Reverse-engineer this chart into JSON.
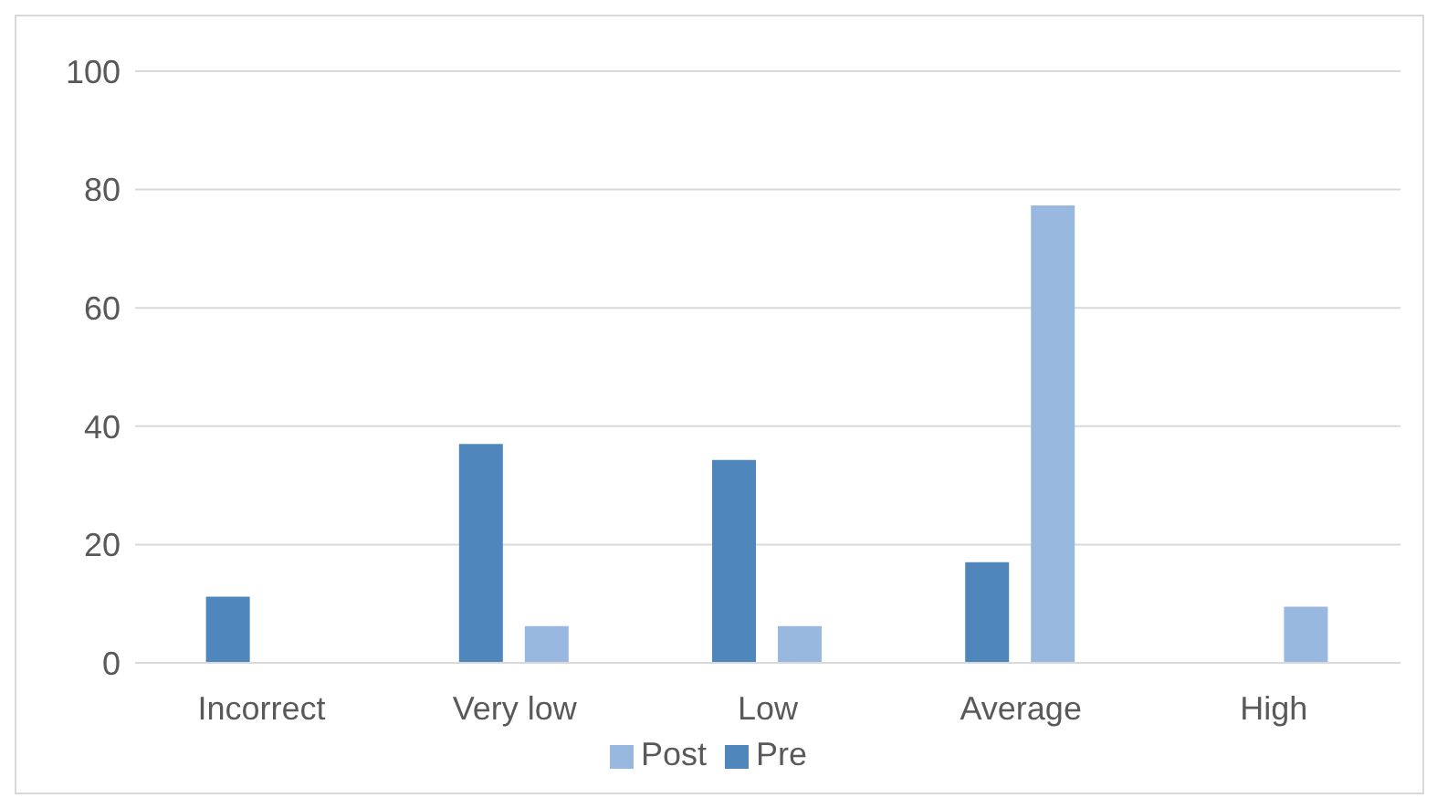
{
  "chart_data": {
    "type": "bar",
    "categories": [
      "Incorrect",
      "Very low",
      "Low",
      "Average",
      "High"
    ],
    "series": [
      {
        "name": "Pre",
        "color": "#4f87bd",
        "values": [
          11.2,
          37.0,
          34.3,
          17.0,
          0
        ]
      },
      {
        "name": "Post",
        "color": "#98b8e0",
        "values": [
          0,
          6.2,
          6.2,
          77.3,
          9.5
        ]
      }
    ],
    "ylim": [
      0,
      100
    ],
    "yticks": [
      0,
      20,
      40,
      60,
      80,
      100
    ],
    "grid": "y",
    "legend": "bottom"
  }
}
